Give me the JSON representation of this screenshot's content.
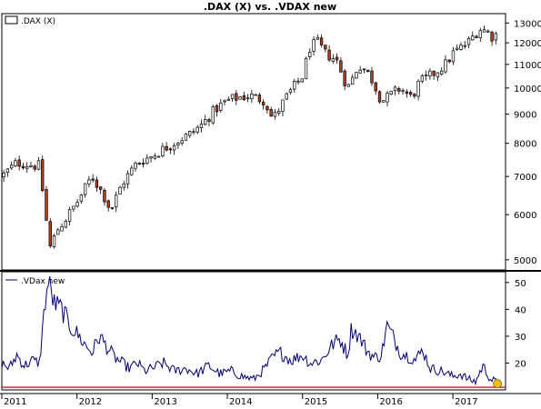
{
  "chart_data": [
    {
      "type": "candlestick",
      "title": ".DAX (X) vs. .VDAX new",
      "legend": {
        "label": ".DAX (X)",
        "placement": "top-left"
      },
      "y_scale": "log",
      "ylim": [
        4800,
        13500
      ],
      "y_ticks": [
        5000,
        6000,
        7000,
        8000,
        9000,
        10000,
        11000,
        12000,
        13000
      ],
      "x_range": [
        2011.0,
        2017.7
      ],
      "x_ticks": [
        "2011",
        "2012",
        "2013",
        "2014",
        "2015",
        "2016",
        "2017"
      ],
      "colors": {
        "up": "#ffffff",
        "down": "#b04020",
        "outline": "#000000"
      },
      "series": [
        {
          "x": [
            2011.0,
            2011.2,
            2011.5,
            2011.58,
            2011.65,
            2011.72,
            2011.85,
            2012.0,
            2012.2,
            2012.35,
            2012.45,
            2012.6,
            2012.8,
            2013.0,
            2013.2,
            2013.35,
            2013.5,
            2013.65,
            2013.85,
            2014.0,
            2014.1,
            2014.3,
            2014.5,
            2014.6,
            2014.8,
            2015.0,
            2015.1,
            2015.2,
            2015.3,
            2015.45,
            2015.6,
            2015.65,
            2015.75,
            2015.9,
            2016.05,
            2016.12,
            2016.3,
            2016.45,
            2016.55,
            2016.7,
            2016.9,
            2017.0,
            2017.2,
            2017.35,
            2017.45,
            2017.55,
            2017.6
          ],
          "y": [
            7000,
            7400,
            7300,
            6000,
            5200,
            5600,
            5900,
            6300,
            7000,
            6500,
            6100,
            6800,
            7400,
            7600,
            7900,
            8100,
            8300,
            8600,
            9200,
            9500,
            9600,
            9700,
            9500,
            8800,
            9700,
            10500,
            11800,
            12000,
            11500,
            11200,
            10000,
            10300,
            11000,
            10500,
            9500,
            9600,
            10000,
            9600,
            10200,
            10500,
            11000,
            11500,
            12000,
            12700,
            12600,
            12200,
            12700
          ]
        }
      ]
    },
    {
      "type": "line",
      "legend": {
        "label": ".VDax new",
        "placement": "top-left"
      },
      "ylim": [
        10,
        54
      ],
      "y_ticks": [
        20,
        30,
        40,
        50
      ],
      "x_range": [
        2011.0,
        2017.7
      ],
      "reference_line": 11,
      "colors": {
        "line": "#00006e",
        "reference": "#c81e1e",
        "marker": "#f0c000"
      },
      "series": [
        {
          "x": [
            2011.0,
            2011.1,
            2011.2,
            2011.3,
            2011.4,
            2011.5,
            2011.58,
            2011.62,
            2011.7,
            2011.8,
            2011.9,
            2012.0,
            2012.1,
            2012.2,
            2012.3,
            2012.4,
            2012.5,
            2012.6,
            2012.7,
            2012.8,
            2012.9,
            2013.0,
            2013.15,
            2013.3,
            2013.45,
            2013.6,
            2013.75,
            2013.9,
            2014.05,
            2014.2,
            2014.35,
            2014.5,
            2014.6,
            2014.7,
            2014.85,
            2015.0,
            2015.1,
            2015.25,
            2015.4,
            2015.5,
            2015.6,
            2015.65,
            2015.75,
            2015.85,
            2015.95,
            2016.05,
            2016.12,
            2016.2,
            2016.3,
            2016.45,
            2016.5,
            2016.6,
            2016.7,
            2016.85,
            2017.0,
            2017.1,
            2017.2,
            2017.3,
            2017.4,
            2017.5,
            2017.58
          ],
          "y": [
            20,
            18,
            23,
            19,
            21,
            20,
            44,
            50,
            42,
            40,
            34,
            31,
            27,
            24,
            30,
            26,
            22,
            20,
            18,
            20,
            17,
            18,
            20,
            17,
            18,
            16,
            19,
            16,
            17,
            15,
            14,
            18,
            22,
            24,
            21,
            23,
            20,
            21,
            27,
            29,
            23,
            33,
            30,
            25,
            22,
            23,
            34,
            30,
            24,
            22,
            21,
            25,
            18,
            17,
            15,
            16,
            14,
            13,
            19,
            14,
            13
          ]
        }
      ]
    }
  ]
}
